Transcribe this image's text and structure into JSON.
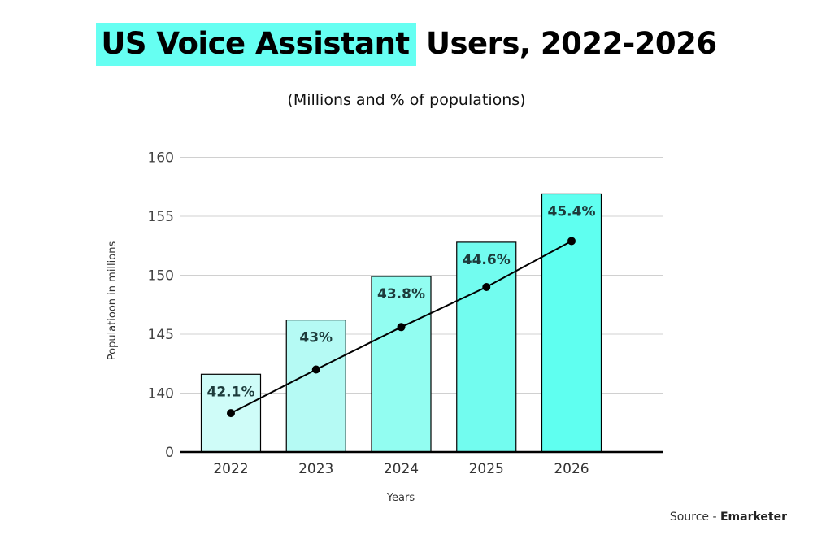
{
  "title": {
    "highlighted": "US Voice Assistant",
    "rest": " Users, 2022-2026"
  },
  "subtitle": "(Millions and % of populations)",
  "source": {
    "prefix": "Source - ",
    "name": "Emarketer"
  },
  "colors": {
    "title_highlight": "#66fff2",
    "line": "#000000"
  },
  "chart_data": {
    "type": "bar",
    "title": "US Voice Assistant Users, 2022-2026",
    "subtitle": "(Millions and % of populations)",
    "xlabel": "Years",
    "ylabel": "Populatioon in millions",
    "y_ticks": [
      "0",
      "140",
      "145",
      "150",
      "155",
      "160"
    ],
    "y_axis_break": true,
    "ylim": [
      0,
      160
    ],
    "grid": true,
    "categories": [
      "2022",
      "2023",
      "2024",
      "2025",
      "2026"
    ],
    "bar_values": [
      141.6,
      146.2,
      149.9,
      152.8,
      156.9
    ],
    "bar_labels": [
      "42.1%",
      "43%",
      "43.8%",
      "44.6%",
      "45.4%"
    ],
    "bar_colors": [
      "#cffcf8",
      "#b5faf4",
      "#92fdf1",
      "#72fcef",
      "#5ffff0"
    ],
    "line_values": [
      138.3,
      142.0,
      145.6,
      149.0,
      152.9
    ]
  }
}
